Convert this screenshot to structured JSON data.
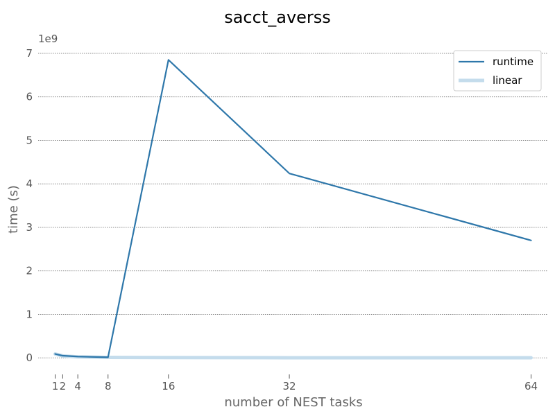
{
  "chart_data": {
    "type": "line",
    "title": "sacct_averss",
    "xlabel": "number of NEST tasks",
    "ylabel": "time (s)",
    "y_offset_label": "1e9",
    "x_ticks": [
      1,
      2,
      4,
      8,
      16,
      32,
      64
    ],
    "x_tick_labels": [
      "1",
      "2",
      "4",
      "8",
      "16",
      "32",
      "64"
    ],
    "y_ticks": [
      0,
      1,
      2,
      3,
      4,
      5,
      6,
      7
    ],
    "y_tick_labels": [
      "0",
      "1",
      "2",
      "3",
      "4",
      "5",
      "6",
      "7"
    ],
    "xlim": [
      -1.25,
      66.25
    ],
    "ylim": [
      -0.38,
      7.35
    ],
    "grid": "horizontal dotted",
    "legend": "top-right",
    "series": [
      {
        "name": "runtime",
        "color": "#2e77aa",
        "x": [
          1,
          2,
          4,
          8,
          16,
          32,
          64
        ],
        "y": [
          0.09,
          0.05,
          0.03,
          0.015,
          6.85,
          4.24,
          2.7
        ]
      },
      {
        "name": "linear",
        "color": "#c4dcec",
        "x": [
          1,
          2,
          4,
          8,
          16,
          32,
          64
        ],
        "y": [
          0.09,
          0.045,
          0.0225,
          0.011,
          0.006,
          0.003,
          0.0015
        ]
      }
    ]
  }
}
